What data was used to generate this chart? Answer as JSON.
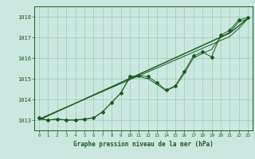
{
  "title": "Graphe pression niveau de la mer (hPa)",
  "xlabel": "Graphe pression niveau de la mer (hPa)",
  "bg_color": "#cbe8e0",
  "grid_color": "#9ecfbf",
  "line_color": "#1a5c1a",
  "xlim": [
    -0.5,
    23.5
  ],
  "ylim": [
    1012.5,
    1018.5
  ],
  "yticks": [
    1013,
    1014,
    1015,
    1016,
    1017,
    1018
  ],
  "xticks": [
    0,
    1,
    2,
    3,
    4,
    5,
    6,
    7,
    8,
    9,
    10,
    11,
    12,
    13,
    14,
    15,
    16,
    17,
    18,
    19,
    20,
    21,
    22,
    23
  ],
  "hours": [
    0,
    1,
    2,
    3,
    4,
    5,
    6,
    7,
    8,
    9,
    10,
    11,
    12,
    13,
    14,
    15,
    16,
    17,
    18,
    19,
    20,
    21,
    22,
    23
  ],
  "pressure_main": [
    1013.1,
    1013.0,
    1013.05,
    1013.0,
    1013.0,
    1013.05,
    1013.1,
    1013.4,
    1013.85,
    1014.3,
    1015.1,
    1015.15,
    1015.1,
    1014.8,
    1014.45,
    1014.65,
    1015.35,
    1016.1,
    1016.3,
    1016.05,
    1017.1,
    1017.35,
    1017.85,
    1017.95
  ],
  "pressure_line2": [
    1013.05,
    1013.0,
    1013.05,
    1013.0,
    1013.0,
    1013.05,
    1013.1,
    1013.4,
    1013.85,
    1014.3,
    1015.05,
    1015.1,
    1015.0,
    1014.72,
    1014.42,
    1014.62,
    1015.25,
    1016.0,
    1016.22,
    1016.42,
    1017.0,
    1017.25,
    1017.75,
    1017.88
  ],
  "pressure_trend1": [
    1013.05,
    1013.24,
    1013.43,
    1013.62,
    1013.81,
    1014.0,
    1014.19,
    1014.38,
    1014.57,
    1014.76,
    1014.95,
    1015.14,
    1015.33,
    1015.52,
    1015.71,
    1015.9,
    1016.09,
    1016.28,
    1016.47,
    1016.66,
    1016.85,
    1017.04,
    1017.43,
    1017.9
  ],
  "pressure_trend2": [
    1013.0,
    1013.2,
    1013.4,
    1013.6,
    1013.8,
    1014.0,
    1014.2,
    1014.4,
    1014.6,
    1014.8,
    1015.0,
    1015.2,
    1015.4,
    1015.6,
    1015.8,
    1016.0,
    1016.2,
    1016.4,
    1016.6,
    1016.8,
    1017.0,
    1017.2,
    1017.55,
    1017.92
  ],
  "pressure_trend3": [
    1013.02,
    1013.22,
    1013.42,
    1013.62,
    1013.82,
    1014.02,
    1014.22,
    1014.42,
    1014.62,
    1014.82,
    1015.02,
    1015.22,
    1015.42,
    1015.62,
    1015.82,
    1016.02,
    1016.22,
    1016.42,
    1016.62,
    1016.82,
    1017.02,
    1017.22,
    1017.57,
    1017.93
  ]
}
